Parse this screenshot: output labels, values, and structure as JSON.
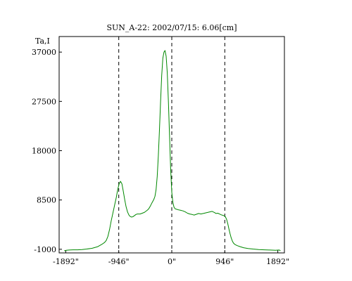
{
  "chart_data": {
    "type": "line",
    "title": "SUN_A-22: 2002/07/15: 6.06[cm]",
    "ylabel": "Ta,I",
    "xlabel": "",
    "xlim": [
      -2010,
      2010
    ],
    "ylim": [
      -1700,
      40000
    ],
    "x_ticks": [
      {
        "value": -1892,
        "label": "-1892\""
      },
      {
        "value": -946,
        "label": "-946\""
      },
      {
        "value": 0,
        "label": "0\""
      },
      {
        "value": 946,
        "label": "946\""
      },
      {
        "value": 1892,
        "label": "1892\""
      }
    ],
    "y_ticks": [
      {
        "value": -1000,
        "label": "-1000"
      },
      {
        "value": 8500,
        "label": "8500"
      },
      {
        "value": 18000,
        "label": "18000"
      },
      {
        "value": 27500,
        "label": "27500"
      },
      {
        "value": 37000,
        "label": "37000"
      }
    ],
    "vlines": [
      -946,
      0,
      946
    ],
    "grid": false,
    "series": [
      {
        "color": "#008800",
        "points": [
          [
            -1920,
            -1300
          ],
          [
            -1880,
            -1200
          ],
          [
            -1830,
            -1150
          ],
          [
            -1760,
            -1100
          ],
          [
            -1680,
            -1100
          ],
          [
            -1600,
            -1050
          ],
          [
            -1520,
            -950
          ],
          [
            -1420,
            -800
          ],
          [
            -1320,
            -500
          ],
          [
            -1240,
            0
          ],
          [
            -1200,
            300
          ],
          [
            -1170,
            700
          ],
          [
            -1140,
            1500
          ],
          [
            -1110,
            2800
          ],
          [
            -1080,
            4500
          ],
          [
            -1050,
            6000
          ],
          [
            -1020,
            7500
          ],
          [
            -990,
            9000
          ],
          [
            -965,
            10500
          ],
          [
            -940,
            11600
          ],
          [
            -915,
            12100
          ],
          [
            -890,
            11600
          ],
          [
            -865,
            10200
          ],
          [
            -840,
            8600
          ],
          [
            -815,
            7200
          ],
          [
            -790,
            6200
          ],
          [
            -765,
            5600
          ],
          [
            -740,
            5300
          ],
          [
            -715,
            5200
          ],
          [
            -690,
            5300
          ],
          [
            -665,
            5500
          ],
          [
            -640,
            5700
          ],
          [
            -615,
            5800
          ],
          [
            -590,
            5800
          ],
          [
            -565,
            5800
          ],
          [
            -540,
            5900
          ],
          [
            -515,
            6000
          ],
          [
            -490,
            6100
          ],
          [
            -465,
            6300
          ],
          [
            -440,
            6500
          ],
          [
            -420,
            6700
          ],
          [
            -400,
            7000
          ],
          [
            -380,
            7400
          ],
          [
            -360,
            7800
          ],
          [
            -340,
            8200
          ],
          [
            -320,
            8600
          ],
          [
            -300,
            9200
          ],
          [
            -280,
            10500
          ],
          [
            -260,
            13000
          ],
          [
            -240,
            17000
          ],
          [
            -220,
            22000
          ],
          [
            -200,
            27500
          ],
          [
            -180,
            32500
          ],
          [
            -160,
            35800
          ],
          [
            -140,
            37000
          ],
          [
            -120,
            37300
          ],
          [
            -100,
            36200
          ],
          [
            -80,
            33000
          ],
          [
            -60,
            27500
          ],
          [
            -40,
            21000
          ],
          [
            -20,
            14500
          ],
          [
            0,
            10000
          ],
          [
            20,
            8000
          ],
          [
            40,
            7100
          ],
          [
            60,
            6800
          ],
          [
            90,
            6700
          ],
          [
            120,
            6600
          ],
          [
            160,
            6500
          ],
          [
            200,
            6400
          ],
          [
            240,
            6200
          ],
          [
            280,
            5950
          ],
          [
            320,
            5800
          ],
          [
            360,
            5700
          ],
          [
            400,
            5600
          ],
          [
            440,
            5750
          ],
          [
            480,
            5900
          ],
          [
            520,
            5800
          ],
          [
            560,
            5900
          ],
          [
            600,
            6000
          ],
          [
            640,
            6100
          ],
          [
            680,
            6200
          ],
          [
            720,
            6300
          ],
          [
            760,
            6100
          ],
          [
            790,
            5900
          ],
          [
            820,
            5950
          ],
          [
            850,
            5800
          ],
          [
            880,
            5650
          ],
          [
            910,
            5550
          ],
          [
            940,
            5450
          ],
          [
            960,
            5200
          ],
          [
            980,
            4700
          ],
          [
            1000,
            3900
          ],
          [
            1020,
            2900
          ],
          [
            1040,
            2000
          ],
          [
            1060,
            1200
          ],
          [
            1080,
            600
          ],
          [
            1100,
            200
          ],
          [
            1130,
            -100
          ],
          [
            1170,
            -300
          ],
          [
            1220,
            -500
          ],
          [
            1280,
            -700
          ],
          [
            1360,
            -850
          ],
          [
            1450,
            -950
          ],
          [
            1550,
            -1050
          ],
          [
            1650,
            -1100
          ],
          [
            1750,
            -1150
          ],
          [
            1850,
            -1200
          ],
          [
            1920,
            -1150
          ],
          [
            1940,
            -1300
          ]
        ]
      }
    ]
  }
}
